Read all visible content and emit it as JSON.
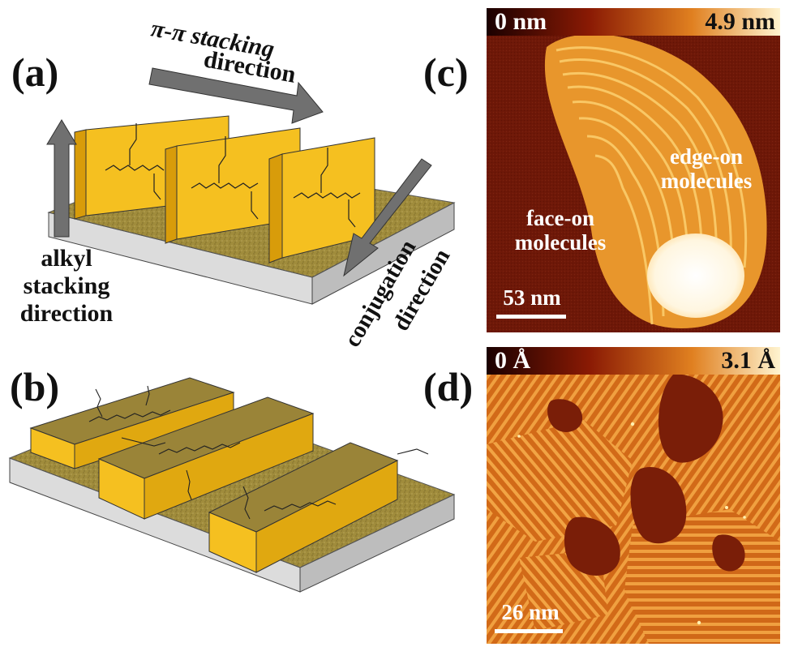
{
  "panels": {
    "a": {
      "label": "(a)",
      "arrow_pi": "π-π stacking direction",
      "arrow_pi_line1": "π-π  stacking",
      "arrow_pi_line2": "direction",
      "arrow_alkyl_line1": "alkyl",
      "arrow_alkyl_line2": "stacking",
      "arrow_alkyl_line3": "direction",
      "arrow_conj_line1": "conjugation",
      "arrow_conj_line2": "direction"
    },
    "b": {
      "label": "(b)"
    },
    "c": {
      "label": "(c)",
      "cbar_min": "0 nm",
      "cbar_max": "4.9 nm",
      "text_edge_1": "edge-on",
      "text_edge_2": "molecules",
      "text_face_1": "face-on",
      "text_face_2": "molecules",
      "scale": "53 nm"
    },
    "d": {
      "label": "(d)",
      "cbar_min": "0 Å",
      "cbar_max": "3.1 Å",
      "scale": "26 nm"
    }
  },
  "colors": {
    "slab_face": "#f5c020",
    "slab_side": "#d8a010",
    "substrate_top": "#a89040",
    "substrate_side": "#d8d8d8",
    "arrow": "#6e6e6e",
    "afm_dark": "#6a1608",
    "afm_light": "#ffe8b0"
  }
}
